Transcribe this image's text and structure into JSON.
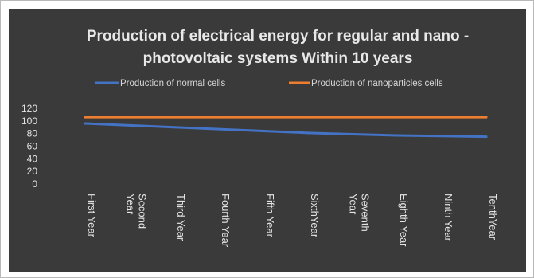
{
  "chart_data": {
    "type": "line",
    "title_lines": [
      "Production of electrical energy for regular and nano -",
      "photovoltaic systems Within 10 years"
    ],
    "categories": [
      [
        "First Year"
      ],
      [
        "Second",
        "Year"
      ],
      [
        "Third Year"
      ],
      [
        "Fourth Year"
      ],
      [
        "Fifth Year"
      ],
      [
        "SixthYear"
      ],
      [
        "Seventh",
        "Year"
      ],
      [
        "Eighth Year"
      ],
      [
        "Ninth Year"
      ],
      [
        "TenthYear"
      ]
    ],
    "series": [
      {
        "name": "Production of normal cells",
        "color": "#4472c4",
        "values": [
          96,
          93,
          90,
          87,
          84,
          81,
          79,
          77,
          76,
          75
        ]
      },
      {
        "name": "Production of nanoparticles cells",
        "color": "#ed7d31",
        "values": [
          106,
          106,
          106,
          106,
          106,
          106,
          106,
          106,
          106,
          106
        ]
      }
    ],
    "yticks": [
      "0",
      "20",
      "40",
      "60",
      "80",
      "100",
      "120"
    ],
    "ylim": [
      0,
      120
    ],
    "legend_position": "top",
    "grid": false
  }
}
